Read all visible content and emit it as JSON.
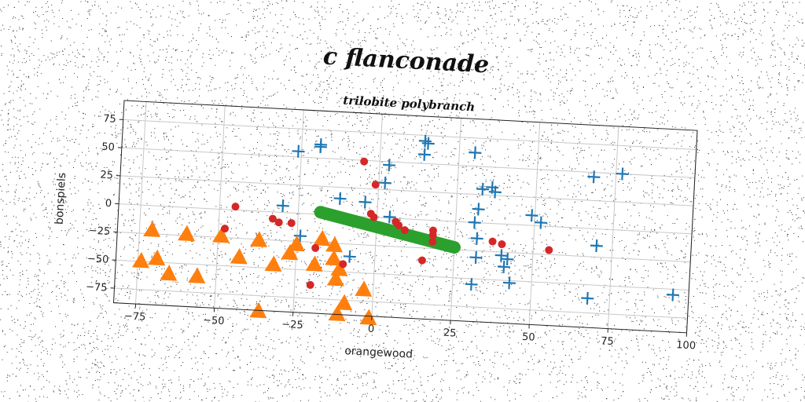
{
  "chart_data": {
    "type": "scatter",
    "title": "c flanconade",
    "subtitle": "trilobite polybranch",
    "xlabel": "orangewood",
    "ylabel": "bonspiels",
    "xlim": [
      -82,
      100
    ],
    "ylim": [
      -88,
      92
    ],
    "xticks": [
      -75,
      -50,
      -25,
      0,
      25,
      50,
      75,
      100
    ],
    "yticks": [
      -75,
      -50,
      -25,
      0,
      25,
      50,
      75
    ],
    "grid": true,
    "rotation_deg": 3,
    "series": [
      {
        "marker": "plus",
        "color": "#1f77b4",
        "points": [
          [
            -26,
            55
          ],
          [
            -19,
            60
          ],
          [
            -19,
            62
          ],
          [
            14,
            70
          ],
          [
            15,
            68
          ],
          [
            14,
            58
          ],
          [
            30,
            62
          ],
          [
            3,
            47
          ],
          [
            2,
            31
          ],
          [
            -4,
            13
          ],
          [
            -12,
            15
          ],
          [
            4,
            1
          ],
          [
            -30,
            6
          ],
          [
            -24,
            -20
          ],
          [
            -8,
            -36
          ],
          [
            32,
            -14
          ],
          [
            32,
            -31
          ],
          [
            31,
            -55
          ],
          [
            41,
            -38
          ],
          [
            43,
            -52
          ],
          [
            31,
            0
          ],
          [
            32,
            12
          ],
          [
            33,
            30
          ],
          [
            36,
            32
          ],
          [
            37,
            28
          ],
          [
            49,
            9
          ],
          [
            52,
            3
          ],
          [
            40,
            -28
          ],
          [
            42,
            -31
          ],
          [
            68,
            -62
          ],
          [
            70,
            -15
          ],
          [
            68,
            46
          ],
          [
            77,
            50
          ],
          [
            95,
            -55
          ]
        ]
      },
      {
        "marker": "triangle",
        "color": "#ff7f0e",
        "points": [
          [
            -71,
            -22
          ],
          [
            -60,
            -24
          ],
          [
            -49,
            -24
          ],
          [
            -37,
            -26
          ],
          [
            -25,
            -28
          ],
          [
            -17,
            -22
          ],
          [
            -13,
            -27
          ],
          [
            -27,
            -36
          ],
          [
            -43,
            -42
          ],
          [
            -32,
            -47
          ],
          [
            -19,
            -45
          ],
          [
            -13,
            -39
          ],
          [
            -11,
            -48
          ],
          [
            -12,
            -57
          ],
          [
            -74,
            -50
          ],
          [
            -65,
            -60
          ],
          [
            -56,
            -61
          ],
          [
            -69,
            -47
          ],
          [
            -3,
            -65
          ],
          [
            -9,
            -78
          ],
          [
            -11,
            -88
          ],
          [
            -1,
            -90
          ],
          [
            -36,
            -89
          ]
        ]
      },
      {
        "marker": "circle",
        "color": "#d62728",
        "points": [
          [
            -5,
            49
          ],
          [
            -1,
            29
          ],
          [
            -45,
            3
          ],
          [
            -48,
            -17
          ],
          [
            -33,
            -6
          ],
          [
            -31,
            -9
          ],
          [
            -27,
            -9
          ],
          [
            -19,
            -30
          ],
          [
            -10,
            -43
          ],
          [
            -20,
            -63
          ],
          [
            -2,
            3
          ],
          [
            -1,
            0
          ],
          [
            7,
            -6
          ],
          [
            9,
            -10
          ],
          [
            18,
            -9
          ],
          [
            18,
            -13
          ],
          [
            18,
            -19
          ],
          [
            15,
            -36
          ],
          [
            37,
            -16
          ],
          [
            40,
            -18
          ],
          [
            55,
            -21
          ],
          [
            6,
            -3
          ]
        ]
      }
    ],
    "band": {
      "color": "#2ca02c",
      "from": [
        -18,
        2
      ],
      "to": [
        25,
        -23
      ],
      "thickness": 8
    }
  }
}
